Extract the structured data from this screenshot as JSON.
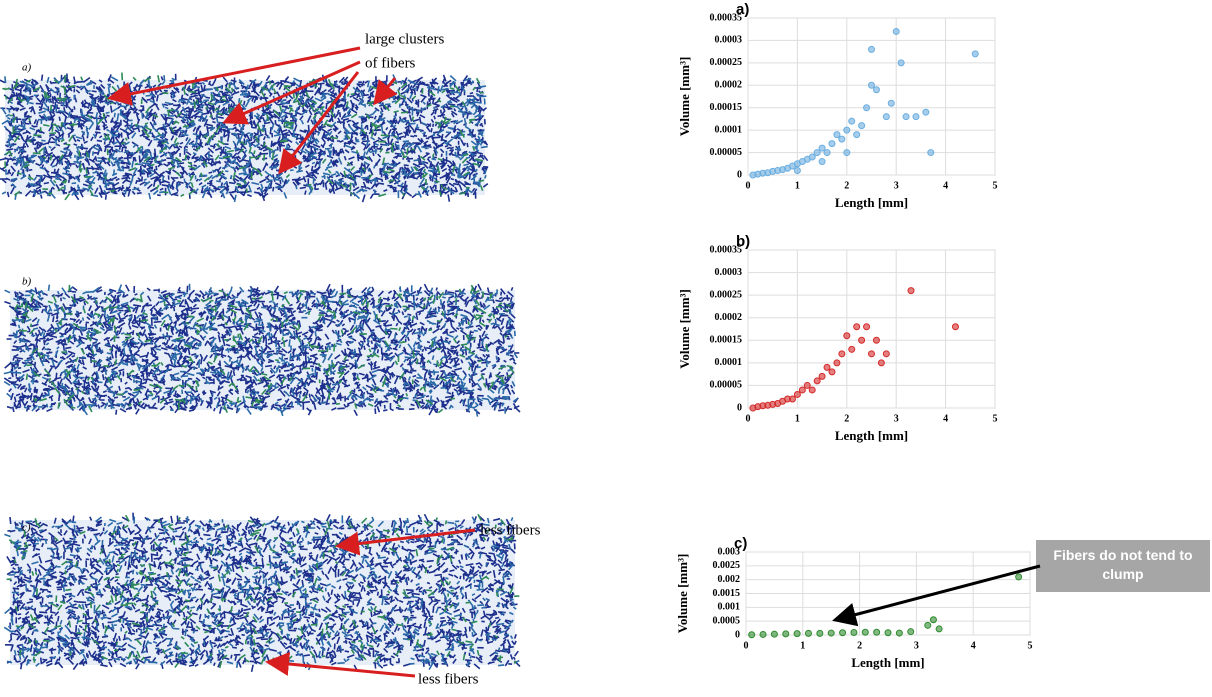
{
  "chart_data": [
    {
      "type": "scatter",
      "title": "a)",
      "x_label": "Length [mm]",
      "y_label": "Volume [mm³]",
      "color": "#6aaee0",
      "xlim": [
        0,
        5
      ],
      "xticks": [
        0,
        1,
        2,
        3,
        4,
        5
      ],
      "ylim": [
        0,
        0.00035
      ],
      "yticks": [
        0,
        5e-05,
        0.0001,
        0.00015,
        0.0002,
        0.00025,
        0.0003,
        0.00035
      ],
      "grid": true,
      "x": [
        0.1,
        0.2,
        0.3,
        0.4,
        0.5,
        0.6,
        0.7,
        0.8,
        0.9,
        1.0,
        1.1,
        1.2,
        1.3,
        1.4,
        1.5,
        1.6,
        1.7,
        1.8,
        1.9,
        2.0,
        2.1,
        2.2,
        2.3,
        2.4,
        2.5,
        2.6,
        2.8,
        2.9,
        3.0,
        3.1,
        3.2,
        3.4,
        3.6,
        3.7,
        4.6,
        1.0,
        1.5,
        2.0,
        2.5
      ],
      "values": [
        0,
        2e-06,
        4e-06,
        5e-06,
        8e-06,
        1e-05,
        1.2e-05,
        1.5e-05,
        2e-05,
        2.5e-05,
        3e-05,
        3.5e-05,
        4e-05,
        5e-05,
        6e-05,
        5e-05,
        7e-05,
        9e-05,
        8e-05,
        0.0001,
        0.00012,
        9e-05,
        0.00011,
        0.00015,
        0.00028,
        0.00019,
        0.00013,
        0.00016,
        0.00032,
        0.00025,
        0.00013,
        0.00013,
        0.00014,
        5e-05,
        0.00027,
        1e-05,
        3e-05,
        5e-05,
        0.0002
      ]
    },
    {
      "type": "scatter",
      "title": "b)",
      "x_label": "Length [mm]",
      "y_label": "Volume [mm³]",
      "color": "#d42a2a",
      "xlim": [
        0,
        5
      ],
      "xticks": [
        0,
        1,
        2,
        3,
        4,
        5
      ],
      "ylim": [
        0,
        0.00035
      ],
      "yticks": [
        0,
        5e-05,
        0.0001,
        0.00015,
        0.0002,
        0.00025,
        0.0003,
        0.00035
      ],
      "grid": true,
      "x": [
        0.1,
        0.2,
        0.3,
        0.4,
        0.5,
        0.6,
        0.7,
        0.8,
        0.9,
        1.0,
        1.1,
        1.2,
        1.3,
        1.4,
        1.5,
        1.6,
        1.7,
        1.8,
        1.9,
        2.0,
        2.1,
        2.2,
        2.3,
        2.4,
        2.5,
        2.6,
        2.7,
        2.8,
        3.3,
        4.2
      ],
      "values": [
        0,
        3e-06,
        5e-06,
        6e-06,
        8e-06,
        1e-05,
        1.5e-05,
        2e-05,
        2e-05,
        3e-05,
        4e-05,
        5e-05,
        4e-05,
        6e-05,
        7e-05,
        9e-05,
        8e-05,
        0.0001,
        0.00012,
        0.00016,
        0.00013,
        0.00018,
        0.00015,
        0.00018,
        0.00012,
        0.00015,
        0.0001,
        0.00012,
        0.00026,
        0.00018
      ]
    },
    {
      "type": "scatter",
      "title": "c)",
      "x_label": "Length [mm]",
      "y_label": "Volume [mm³]",
      "color": "#2e8b2e",
      "xlim": [
        0,
        5
      ],
      "xticks": [
        0,
        1,
        2,
        3,
        4,
        5
      ],
      "ylim": [
        0,
        0.003
      ],
      "yticks": [
        0,
        0.0005,
        0.001,
        0.0015,
        0.002,
        0.0025,
        0.003
      ],
      "grid": true,
      "x": [
        0.1,
        0.3,
        0.5,
        0.7,
        0.9,
        1.1,
        1.3,
        1.5,
        1.7,
        1.9,
        2.1,
        2.3,
        2.5,
        2.7,
        2.9,
        3.2,
        3.3,
        3.4,
        4.8
      ],
      "values": [
        1e-05,
        2e-05,
        3e-05,
        4e-05,
        5e-05,
        6e-05,
        6e-05,
        7e-05,
        8e-05,
        9e-05,
        0.0001,
        0.0001,
        8e-05,
        7e-05,
        0.00012,
        0.00035,
        0.00055,
        0.00022,
        0.0021
      ],
      "annotation": "Fibers do not tend to clump"
    }
  ],
  "images": {
    "labels": [
      "a)",
      "b)",
      "c)"
    ],
    "annotations": [
      "large clusters",
      "of fibers",
      "less fibers",
      "less fibers"
    ]
  }
}
